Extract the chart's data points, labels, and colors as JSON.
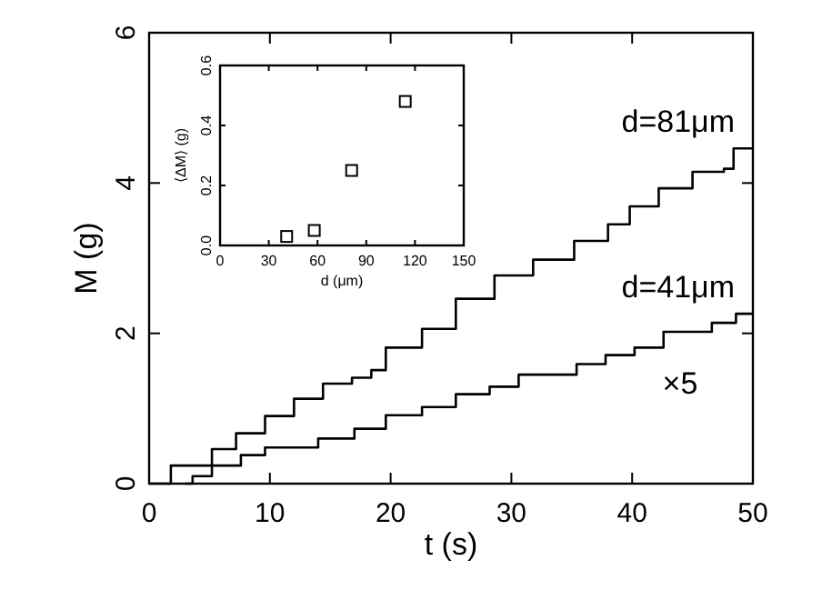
{
  "chart_data": [
    {
      "type": "step",
      "xlabel": "t (s)",
      "ylabel": "M (g)",
      "xlim": [
        0,
        50
      ],
      "xticks": [
        0,
        10,
        20,
        30,
        40,
        50
      ],
      "ylim": [
        0,
        6
      ],
      "yticks": [
        0,
        2,
        4,
        6
      ],
      "marker": "none",
      "grid": false,
      "annotations": [
        "×5"
      ],
      "series": [
        {
          "name": "d=81μm",
          "color": "#000000",
          "x": [
            0,
            1.8,
            5.2,
            7.2,
            9.6,
            12,
            14.4,
            16.8,
            18.4,
            19.6,
            22.6,
            25.4,
            28.6,
            31.8,
            35.2,
            38,
            39.8,
            42.2,
            45,
            47.6,
            48.4,
            50
          ],
          "values": [
            0,
            0.24,
            0.46,
            0.67,
            0.9,
            1.13,
            1.33,
            1.41,
            1.51,
            1.81,
            2.06,
            2.46,
            2.77,
            2.98,
            3.23,
            3.45,
            3.69,
            3.93,
            4.15,
            4.19,
            4.46,
            4.46
          ]
        },
        {
          "name": "d=41μm",
          "color": "#000000",
          "x": [
            3,
            3.6,
            5.2,
            7.6,
            9.6,
            14,
            17,
            19.6,
            22.6,
            25.4,
            28.2,
            30.6,
            35.4,
            37.8,
            40.2,
            42.6,
            46.6,
            48.6,
            50
          ],
          "values": [
            0,
            0.1,
            0.24,
            0.38,
            0.48,
            0.6,
            0.73,
            0.91,
            1.02,
            1.19,
            1.29,
            1.45,
            1.59,
            1.71,
            1.81,
            2.02,
            2.14,
            2.26,
            2.26
          ]
        }
      ]
    },
    {
      "type": "scatter",
      "xlabel": "d (μm)",
      "ylabel": "⟨ΔM⟩ (g)",
      "xlim": [
        0,
        150
      ],
      "xticks": [
        0,
        30,
        60,
        90,
        120,
        150
      ],
      "ylim": [
        0,
        0.6
      ],
      "yticks": [
        {
          "value": 0,
          "label": "0.0"
        },
        {
          "value": 0.2,
          "label": "0.2"
        },
        {
          "value": 0.4,
          "label": "0.4"
        },
        {
          "value": 0.6,
          "label": "0.6"
        }
      ],
      "marker": "square",
      "grid": false,
      "series": [
        {
          "color": "#000000",
          "x": [
            41,
            58,
            81,
            114
          ],
          "values": [
            0.03,
            0.05,
            0.25,
            0.48
          ]
        }
      ]
    }
  ]
}
